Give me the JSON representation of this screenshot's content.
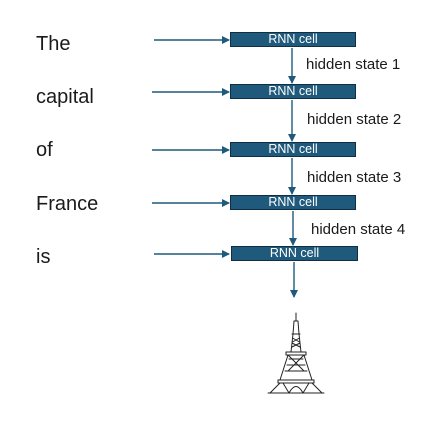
{
  "input_tokens": [
    "The",
    "capital",
    "of",
    "France",
    "is"
  ],
  "cell_label": "RNN cell",
  "hidden_states": [
    "hidden state 1",
    "hidden state 2",
    "hidden state 3",
    "hidden state 4"
  ],
  "output_icon": "eiffel-tower-icon",
  "colors": {
    "cell_fill": "#1f5a7c",
    "cell_border": "#0f2f44",
    "arrow": "#1f5a7c",
    "text": "#1a1a1a"
  }
}
